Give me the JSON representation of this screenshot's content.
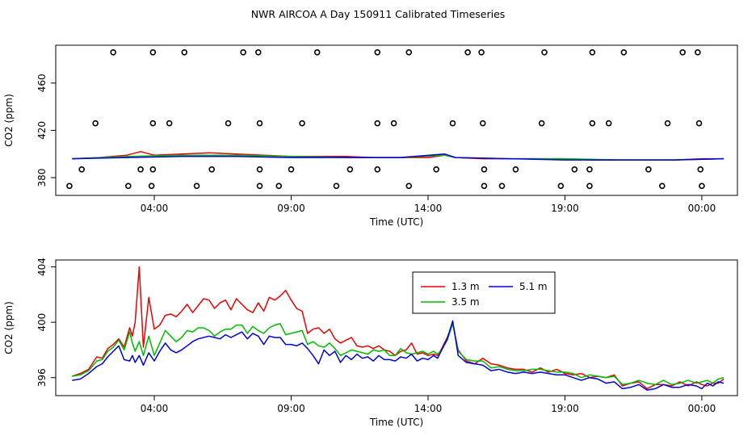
{
  "title": "NWR AIRCOA A  Day 150911  Calibrated Timeseries",
  "chart_data": [
    {
      "type": "scatter+line",
      "title": "",
      "xlabel": "Time (UTC)",
      "ylabel": "CO2 (ppm)",
      "xlim": [
        -0.6,
        24.3
      ],
      "ylim": [
        365,
        492
      ],
      "x_ticks": [
        {
          "v": 3,
          "label": "04:00"
        },
        {
          "v": 8,
          "label": "09:00"
        },
        {
          "v": 13,
          "label": "14:00"
        },
        {
          "v": 18,
          "label": "19:00"
        },
        {
          "v": 23,
          "label": "00:00"
        }
      ],
      "y_ticks": [
        {
          "v": 380,
          "label": "380"
        },
        {
          "v": 420,
          "label": "420"
        },
        {
          "v": 460,
          "label": "460"
        }
      ],
      "lines": [
        {
          "name": "1.3 m",
          "color": "#ee0000",
          "x": [
            0,
            1,
            2,
            2.5,
            3,
            4,
            5,
            6,
            7,
            8,
            9,
            10,
            11,
            12,
            13,
            13.6,
            14,
            15,
            16,
            17,
            18,
            19,
            20,
            21,
            22,
            23,
            23.8
          ],
          "y": [
            396,
            397,
            399,
            402,
            399,
            400,
            401,
            400,
            399,
            398,
            398,
            398,
            397,
            397,
            397,
            399,
            397,
            396,
            396,
            396,
            396,
            395,
            395,
            395,
            395,
            396,
            396
          ]
        },
        {
          "name": "3.5 m",
          "color": "#00bb00",
          "x": [
            0,
            2,
            4,
            6,
            8,
            10,
            12,
            13.6,
            14,
            16,
            18,
            20,
            22,
            23.8
          ],
          "y": [
            396,
            398,
            399,
            399,
            398,
            397,
            397,
            399,
            397,
            396,
            396,
            395,
            395,
            396
          ]
        },
        {
          "name": "5.1 m",
          "color": "#0000dd",
          "x": [
            0,
            2,
            4,
            6,
            8,
            10,
            12,
            13.6,
            14,
            16,
            18,
            20,
            22,
            23.8
          ],
          "y": [
            396,
            397,
            398,
            398,
            397,
            397,
            397,
            400,
            397,
            396,
            395,
            395,
            395,
            396
          ]
        }
      ],
      "scatter_points": [
        {
          "x": 1.5,
          "y": 486
        },
        {
          "x": 2.95,
          "y": 486
        },
        {
          "x": 4.1,
          "y": 486
        },
        {
          "x": 6.25,
          "y": 486
        },
        {
          "x": 6.8,
          "y": 486
        },
        {
          "x": 8.95,
          "y": 486
        },
        {
          "x": 11.15,
          "y": 486
        },
        {
          "x": 12.3,
          "y": 486
        },
        {
          "x": 14.45,
          "y": 486
        },
        {
          "x": 14.95,
          "y": 486
        },
        {
          "x": 17.25,
          "y": 486
        },
        {
          "x": 19.0,
          "y": 486
        },
        {
          "x": 20.15,
          "y": 486
        },
        {
          "x": 22.3,
          "y": 486
        },
        {
          "x": 22.85,
          "y": 486
        },
        {
          "x": 0.85,
          "y": 426
        },
        {
          "x": 2.95,
          "y": 426
        },
        {
          "x": 3.55,
          "y": 426
        },
        {
          "x": 5.7,
          "y": 426
        },
        {
          "x": 6.85,
          "y": 426
        },
        {
          "x": 8.4,
          "y": 426
        },
        {
          "x": 11.15,
          "y": 426
        },
        {
          "x": 11.75,
          "y": 426
        },
        {
          "x": 13.9,
          "y": 426
        },
        {
          "x": 15.0,
          "y": 426
        },
        {
          "x": 17.15,
          "y": 426
        },
        {
          "x": 19.0,
          "y": 426
        },
        {
          "x": 19.6,
          "y": 426
        },
        {
          "x": 21.75,
          "y": 426
        },
        {
          "x": 22.9,
          "y": 426
        },
        {
          "x": 0.35,
          "y": 387
        },
        {
          "x": 2.5,
          "y": 387
        },
        {
          "x": 2.95,
          "y": 387
        },
        {
          "x": 5.1,
          "y": 387
        },
        {
          "x": 6.85,
          "y": 387
        },
        {
          "x": 8.0,
          "y": 387
        },
        {
          "x": 10.15,
          "y": 387
        },
        {
          "x": 11.15,
          "y": 387
        },
        {
          "x": 13.3,
          "y": 387
        },
        {
          "x": 15.05,
          "y": 387
        },
        {
          "x": 16.2,
          "y": 387
        },
        {
          "x": 18.35,
          "y": 387
        },
        {
          "x": 18.9,
          "y": 387
        },
        {
          "x": 21.05,
          "y": 387
        },
        {
          "x": 22.95,
          "y": 387
        },
        {
          "x": -0.1,
          "y": 373
        },
        {
          "x": 2.05,
          "y": 373
        },
        {
          "x": 2.9,
          "y": 373
        },
        {
          "x": 4.55,
          "y": 373
        },
        {
          "x": 6.85,
          "y": 373
        },
        {
          "x": 7.55,
          "y": 373
        },
        {
          "x": 9.65,
          "y": 373
        },
        {
          "x": 12.3,
          "y": 373
        },
        {
          "x": 15.05,
          "y": 373
        },
        {
          "x": 15.7,
          "y": 373
        },
        {
          "x": 17.85,
          "y": 373
        },
        {
          "x": 18.9,
          "y": 373
        },
        {
          "x": 21.55,
          "y": 373
        },
        {
          "x": 23.0,
          "y": 373
        }
      ]
    },
    {
      "type": "line",
      "title": "",
      "xlabel": "Time (UTC)",
      "ylabel": "CO2 (ppm)",
      "xlim": [
        -0.6,
        24.3
      ],
      "ylim": [
        394.7,
        404.5
      ],
      "x_ticks": [
        {
          "v": 3,
          "label": "04:00"
        },
        {
          "v": 8,
          "label": "09:00"
        },
        {
          "v": 13,
          "label": "14:00"
        },
        {
          "v": 18,
          "label": "19:00"
        },
        {
          "v": 23,
          "label": "00:00"
        }
      ],
      "y_ticks": [
        {
          "v": 396,
          "label": "396"
        },
        {
          "v": 400,
          "label": "400"
        },
        {
          "v": 404,
          "label": "404"
        }
      ],
      "legend": {
        "position": "top-center",
        "entries": [
          {
            "name": "1.3 m",
            "color": "#ee0000"
          },
          {
            "name": "3.5 m",
            "color": "#00bb00"
          },
          {
            "name": "5.1 m",
            "color": "#0000dd"
          }
        ]
      },
      "series": [
        {
          "name": "1.3 m",
          "color": "#ee0000",
          "x": [
            0.0,
            0.3,
            0.6,
            0.9,
            1.1,
            1.3,
            1.5,
            1.7,
            1.9,
            2.1,
            2.2,
            2.3,
            2.45,
            2.6,
            2.8,
            3.0,
            3.2,
            3.4,
            3.6,
            3.8,
            4.0,
            4.2,
            4.4,
            4.6,
            4.8,
            5.0,
            5.2,
            5.4,
            5.6,
            5.8,
            6.0,
            6.2,
            6.4,
            6.6,
            6.8,
            7.0,
            7.2,
            7.4,
            7.6,
            7.8,
            8.0,
            8.2,
            8.4,
            8.6,
            8.8,
            9.0,
            9.2,
            9.4,
            9.6,
            9.8,
            10.0,
            10.2,
            10.4,
            10.6,
            10.8,
            11.0,
            11.2,
            11.4,
            11.6,
            11.8,
            12.0,
            12.2,
            12.4,
            12.6,
            12.8,
            13.0,
            13.2,
            13.35,
            13.5,
            13.7,
            13.9,
            14.1,
            14.4,
            14.7,
            15.0,
            15.3,
            15.6,
            15.9,
            16.2,
            16.5,
            16.8,
            17.1,
            17.4,
            17.7,
            18.0,
            18.3,
            18.6,
            18.9,
            19.2,
            19.5,
            19.8,
            20.1,
            20.4,
            20.7,
            21.0,
            21.3,
            21.6,
            21.9,
            22.2,
            22.5,
            22.8,
            23.0,
            23.2,
            23.4,
            23.6,
            23.8
          ],
          "y": [
            396.1,
            396.3,
            396.6,
            397.5,
            397.4,
            398.1,
            398.4,
            398.8,
            398.2,
            399.6,
            399.0,
            400.0,
            404.0,
            398.2,
            401.8,
            399.5,
            399.8,
            400.5,
            400.6,
            400.4,
            400.8,
            401.3,
            400.7,
            401.2,
            401.7,
            401.6,
            401.0,
            401.4,
            401.6,
            400.9,
            401.7,
            401.3,
            400.9,
            400.7,
            401.4,
            400.8,
            401.8,
            401.6,
            401.9,
            402.3,
            401.6,
            401.0,
            400.8,
            399.2,
            399.5,
            399.6,
            399.2,
            399.5,
            398.8,
            398.5,
            398.7,
            398.9,
            398.3,
            398.2,
            398.3,
            398.1,
            398.3,
            398.0,
            397.9,
            397.6,
            397.9,
            398.0,
            398.5,
            397.7,
            397.8,
            397.6,
            397.7,
            397.6,
            398.1,
            398.9,
            399.9,
            398.0,
            397.2,
            397.0,
            397.4,
            397.0,
            396.9,
            396.7,
            396.6,
            396.6,
            396.4,
            396.7,
            396.4,
            396.6,
            396.3,
            396.2,
            396.3,
            396.0,
            396.1,
            396.0,
            396.2,
            395.4,
            395.6,
            395.7,
            395.2,
            395.5,
            395.5,
            395.4,
            395.7,
            395.4,
            395.7,
            395.5,
            395.4,
            395.6,
            395.6,
            395.9
          ]
        },
        {
          "name": "3.5 m",
          "color": "#00bb00",
          "x": [
            0.0,
            0.3,
            0.6,
            0.9,
            1.1,
            1.3,
            1.5,
            1.7,
            1.9,
            2.1,
            2.2,
            2.3,
            2.45,
            2.6,
            2.8,
            3.0,
            3.2,
            3.4,
            3.6,
            3.8,
            4.0,
            4.2,
            4.4,
            4.6,
            4.8,
            5.0,
            5.2,
            5.4,
            5.6,
            5.8,
            6.0,
            6.2,
            6.4,
            6.6,
            6.8,
            7.0,
            7.2,
            7.4,
            7.6,
            7.8,
            8.0,
            8.2,
            8.4,
            8.6,
            8.8,
            9.0,
            9.2,
            9.4,
            9.6,
            9.8,
            10.0,
            10.2,
            10.4,
            10.6,
            10.8,
            11.0,
            11.2,
            11.4,
            11.6,
            11.8,
            12.0,
            12.2,
            12.4,
            12.6,
            12.8,
            13.0,
            13.2,
            13.35,
            13.5,
            13.7,
            13.9,
            14.1,
            14.4,
            14.7,
            15.0,
            15.3,
            15.6,
            15.9,
            16.2,
            16.5,
            16.8,
            17.1,
            17.4,
            17.7,
            18.0,
            18.3,
            18.6,
            18.9,
            19.2,
            19.5,
            19.8,
            20.1,
            20.4,
            20.7,
            21.0,
            21.3,
            21.6,
            21.9,
            22.2,
            22.5,
            22.8,
            23.0,
            23.2,
            23.4,
            23.6,
            23.8
          ],
          "y": [
            396.1,
            396.2,
            396.5,
            397.2,
            397.3,
            397.9,
            398.2,
            398.7,
            398.0,
            399.3,
            398.5,
            397.9,
            398.6,
            397.6,
            399.0,
            397.6,
            398.5,
            399.4,
            399.0,
            398.6,
            398.9,
            399.4,
            399.3,
            399.6,
            399.6,
            399.4,
            399.0,
            399.3,
            399.5,
            399.5,
            399.8,
            399.8,
            399.2,
            399.7,
            399.4,
            399.2,
            399.6,
            399.8,
            399.9,
            399.1,
            399.2,
            399.3,
            399.4,
            398.4,
            398.6,
            398.3,
            398.2,
            398.5,
            398.1,
            397.6,
            397.8,
            398.0,
            397.9,
            397.8,
            397.7,
            398.0,
            397.9,
            398.0,
            397.6,
            397.6,
            398.1,
            397.8,
            397.7,
            397.8,
            397.9,
            397.7,
            397.9,
            397.7,
            398.0,
            398.7,
            399.9,
            397.9,
            397.3,
            397.2,
            397.2,
            396.7,
            396.8,
            396.6,
            396.5,
            396.5,
            396.6,
            396.6,
            396.5,
            396.4,
            396.4,
            396.3,
            396.0,
            396.2,
            396.1,
            396.0,
            396.1,
            395.5,
            395.6,
            395.8,
            395.6,
            395.5,
            395.8,
            395.5,
            395.6,
            395.8,
            395.6,
            395.7,
            395.8,
            395.6,
            395.9,
            396.0
          ]
        },
        {
          "name": "5.1 m",
          "color": "#0000dd",
          "x": [
            0.0,
            0.3,
            0.6,
            0.9,
            1.1,
            1.3,
            1.5,
            1.7,
            1.9,
            2.1,
            2.2,
            2.3,
            2.45,
            2.6,
            2.8,
            3.0,
            3.2,
            3.4,
            3.6,
            3.8,
            4.0,
            4.2,
            4.4,
            4.6,
            4.8,
            5.0,
            5.2,
            5.4,
            5.6,
            5.8,
            6.0,
            6.2,
            6.4,
            6.6,
            6.8,
            7.0,
            7.2,
            7.4,
            7.6,
            7.8,
            8.0,
            8.2,
            8.4,
            8.6,
            8.8,
            9.0,
            9.2,
            9.4,
            9.6,
            9.8,
            10.0,
            10.2,
            10.4,
            10.6,
            10.8,
            11.0,
            11.2,
            11.4,
            11.6,
            11.8,
            12.0,
            12.2,
            12.4,
            12.6,
            12.8,
            13.0,
            13.2,
            13.35,
            13.5,
            13.7,
            13.9,
            14.1,
            14.4,
            14.7,
            15.0,
            15.3,
            15.6,
            15.9,
            16.2,
            16.5,
            16.8,
            17.1,
            17.4,
            17.7,
            18.0,
            18.3,
            18.6,
            18.9,
            19.2,
            19.5,
            19.8,
            20.1,
            20.4,
            20.7,
            21.0,
            21.3,
            21.6,
            21.9,
            22.2,
            22.5,
            22.8,
            23.0,
            23.2,
            23.4,
            23.6,
            23.8
          ],
          "y": [
            395.8,
            395.9,
            396.3,
            396.8,
            397.0,
            397.5,
            397.9,
            398.3,
            397.3,
            397.2,
            397.6,
            397.1,
            397.6,
            396.9,
            397.8,
            397.2,
            397.9,
            398.5,
            398.0,
            397.8,
            398.0,
            398.3,
            398.6,
            398.8,
            398.9,
            399.0,
            398.9,
            398.8,
            399.1,
            398.9,
            399.1,
            399.3,
            398.8,
            399.2,
            399.0,
            398.4,
            399.0,
            398.9,
            398.9,
            398.4,
            398.4,
            398.3,
            398.5,
            398.1,
            397.6,
            397.0,
            398.0,
            397.6,
            397.9,
            397.1,
            397.6,
            397.3,
            397.7,
            397.4,
            397.5,
            397.2,
            397.6,
            397.3,
            397.3,
            397.2,
            397.5,
            397.4,
            397.7,
            397.2,
            397.4,
            397.3,
            397.6,
            397.4,
            398.0,
            398.8,
            400.1,
            397.6,
            397.1,
            397.0,
            396.9,
            396.5,
            396.6,
            396.4,
            396.3,
            396.4,
            396.3,
            396.4,
            396.3,
            396.2,
            396.2,
            396.0,
            395.8,
            396.0,
            395.9,
            395.6,
            395.7,
            395.2,
            395.3,
            395.5,
            395.1,
            395.2,
            395.5,
            395.3,
            395.3,
            395.5,
            395.4,
            395.2,
            395.6,
            395.4,
            395.7,
            395.6
          ]
        }
      ]
    }
  ]
}
